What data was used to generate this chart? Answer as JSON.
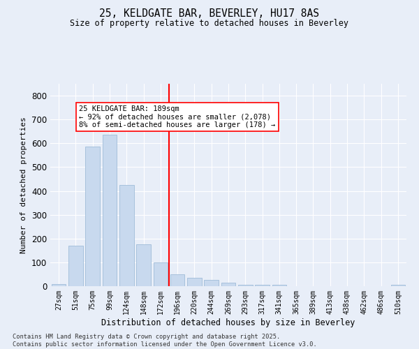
{
  "title1": "25, KELDGATE BAR, BEVERLEY, HU17 8AS",
  "title2": "Size of property relative to detached houses in Beverley",
  "xlabel": "Distribution of detached houses by size in Beverley",
  "ylabel": "Number of detached properties",
  "bar_color": "#c8d9ee",
  "bar_edge_color": "#a0bcd8",
  "categories": [
    "27sqm",
    "51sqm",
    "75sqm",
    "99sqm",
    "124sqm",
    "148sqm",
    "172sqm",
    "196sqm",
    "220sqm",
    "244sqm",
    "269sqm",
    "293sqm",
    "317sqm",
    "341sqm",
    "365sqm",
    "389sqm",
    "413sqm",
    "438sqm",
    "462sqm",
    "486sqm",
    "510sqm"
  ],
  "values": [
    10,
    170,
    585,
    635,
    425,
    175,
    100,
    50,
    35,
    25,
    15,
    5,
    5,
    5,
    0,
    0,
    0,
    0,
    0,
    0,
    5
  ],
  "vline_index": 7,
  "vline_color": "red",
  "annotation_title": "25 KELDGATE BAR: 189sqm",
  "annotation_line1": "← 92% of detached houses are smaller (2,078)",
  "annotation_line2": "8% of semi-detached houses are larger (178) →",
  "ylim": [
    0,
    850
  ],
  "yticks": [
    0,
    100,
    200,
    300,
    400,
    500,
    600,
    700,
    800
  ],
  "fig_bg": "#e8eef8",
  "plot_bg": "#e8eef8",
  "footer1": "Contains HM Land Registry data © Crown copyright and database right 2025.",
  "footer2": "Contains public sector information licensed under the Open Government Licence v3.0."
}
